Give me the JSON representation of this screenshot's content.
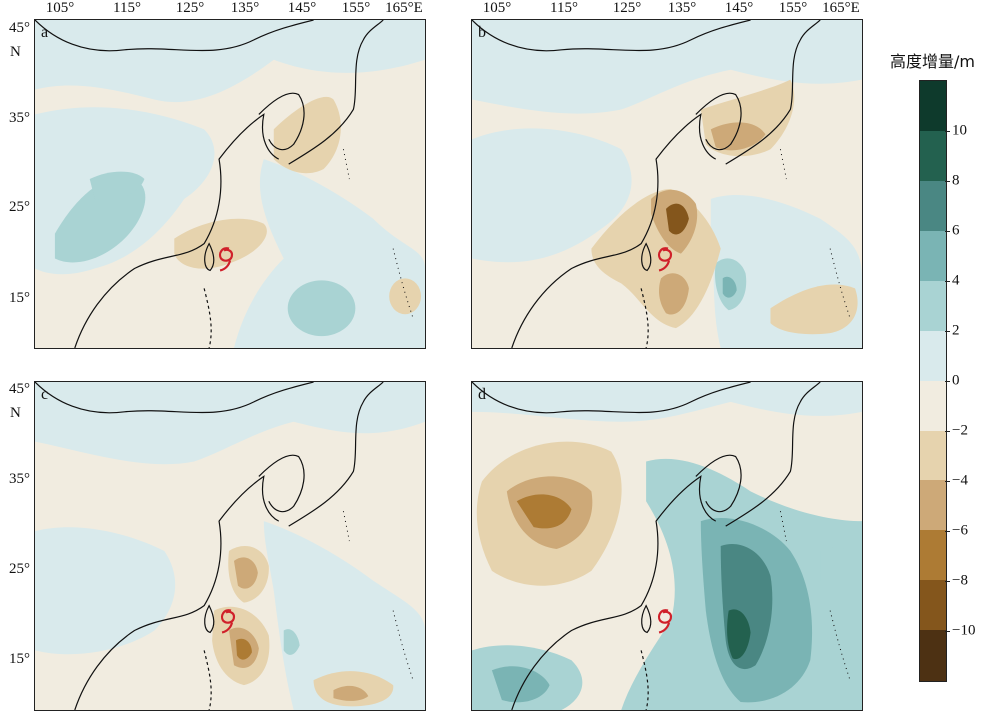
{
  "axes": {
    "lon_ticks": [
      "105°",
      "115°",
      "125°",
      "135°",
      "145°",
      "155°",
      "165°E"
    ],
    "lat_ticks": [
      "45°",
      "35°",
      "25°",
      "15°"
    ],
    "north_label": "N"
  },
  "panels": [
    {
      "letter": "a",
      "field": "height-increment",
      "typhoon_symbol": "typhoon-icon"
    },
    {
      "letter": "b",
      "field": "height-increment",
      "typhoon_symbol": "typhoon-icon"
    },
    {
      "letter": "c",
      "field": "height-increment",
      "typhoon_symbol": "typhoon-icon"
    },
    {
      "letter": "d",
      "field": "height-increment",
      "typhoon_symbol": "typhoon-icon"
    }
  ],
  "colorbar": {
    "title": "高度增量/m",
    "ticks": [
      "10",
      "8",
      "6",
      "4",
      "2",
      "0",
      "−2",
      "−4",
      "−6",
      "−8",
      "−10"
    ],
    "levels_top_to_bottom": [
      {
        "range": ">10",
        "color": "#0e3a2c"
      },
      {
        "range": "8~10",
        "color": "#23614f"
      },
      {
        "range": "6~8",
        "color": "#4a8783"
      },
      {
        "range": "4~6",
        "color": "#7ab4b4"
      },
      {
        "range": "2~4",
        "color": "#a9d3d3"
      },
      {
        "range": "0~2",
        "color": "#d9eaec"
      },
      {
        "range": "−2~0",
        "color": "#f1ece0"
      },
      {
        "range": "−4~−2",
        "color": "#e6d3ae"
      },
      {
        "range": "−6~−4",
        "color": "#cda978"
      },
      {
        "range": "−8~−6",
        "color": "#ad7b34"
      },
      {
        "range": "−10~−8",
        "color": "#84561c"
      },
      {
        "range": "<−10",
        "color": "#4d3113"
      }
    ]
  }
}
